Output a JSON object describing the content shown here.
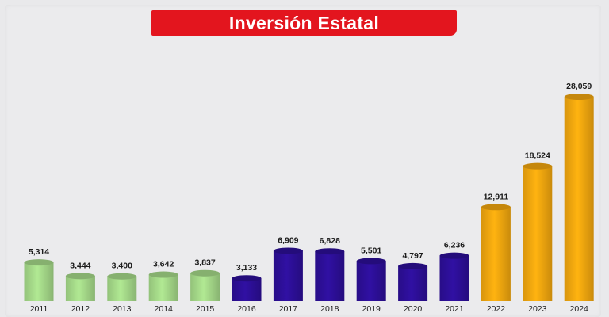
{
  "chart_data": {
    "type": "bar",
    "title": "Inversión Estatal",
    "categories": [
      "2011",
      "2012",
      "2013",
      "2014",
      "2015",
      "2016",
      "2017",
      "2018",
      "2019",
      "2020",
      "2021",
      "2022",
      "2023",
      "2024"
    ],
    "values": [
      5314,
      3444,
      3400,
      3642,
      3837,
      3133,
      6909,
      6828,
      5501,
      4797,
      6236,
      12911,
      18524,
      28059
    ],
    "value_labels": [
      "5,314",
      "3,444",
      "3,400",
      "3,642",
      "3,837",
      "3,133",
      "6,909",
      "6,828",
      "5,501",
      "4,797",
      "6,236",
      "12,911",
      "18,524",
      "28,059"
    ],
    "bar_colors": [
      "#a7dc8b",
      "#a7dc8b",
      "#a7dc8b",
      "#a7dc8b",
      "#a7dc8b",
      "#2d0f9a",
      "#2d0f9a",
      "#2d0f9a",
      "#2d0f9a",
      "#2d0f9a",
      "#2d0f9a",
      "#f6a90f",
      "#f6a90f",
      "#f6a90f"
    ],
    "xlabel": "",
    "ylabel": "",
    "ylim": [
      0,
      28059
    ],
    "grid": false,
    "legend": "none"
  },
  "colors": {
    "title_bg": "#e3151e",
    "title_text": "#ffffff",
    "background": "#ebebed"
  }
}
